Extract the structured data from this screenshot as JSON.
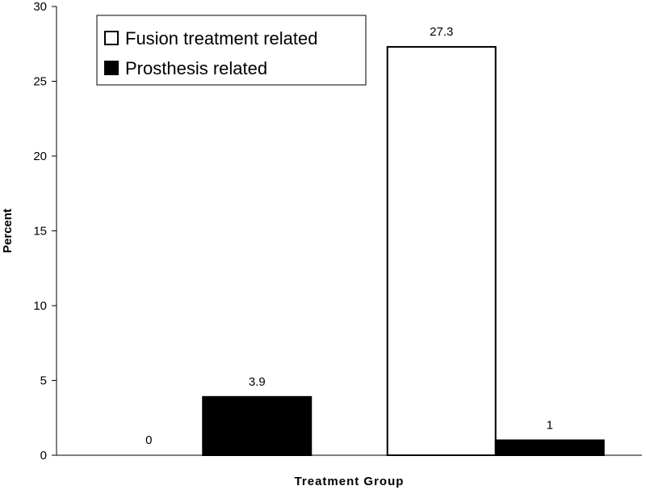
{
  "chart_data": {
    "type": "bar",
    "title": "",
    "xlabel": "Treatment Group",
    "ylabel": "Percent",
    "ylim": [
      0,
      30
    ],
    "yticks": [
      0,
      5,
      10,
      15,
      20,
      25,
      30
    ],
    "categories": [
      "",
      ""
    ],
    "grid": false,
    "legend_position": "top-left",
    "series": [
      {
        "name": "Fusion treatment related",
        "values": [
          0,
          27.3
        ],
        "data_labels": [
          "0",
          "27.3"
        ],
        "color": "#ffffff"
      },
      {
        "name": "Prosthesis related",
        "values": [
          3.9,
          1
        ],
        "data_labels": [
          "3.9",
          "1"
        ],
        "color": "#000000"
      }
    ]
  }
}
